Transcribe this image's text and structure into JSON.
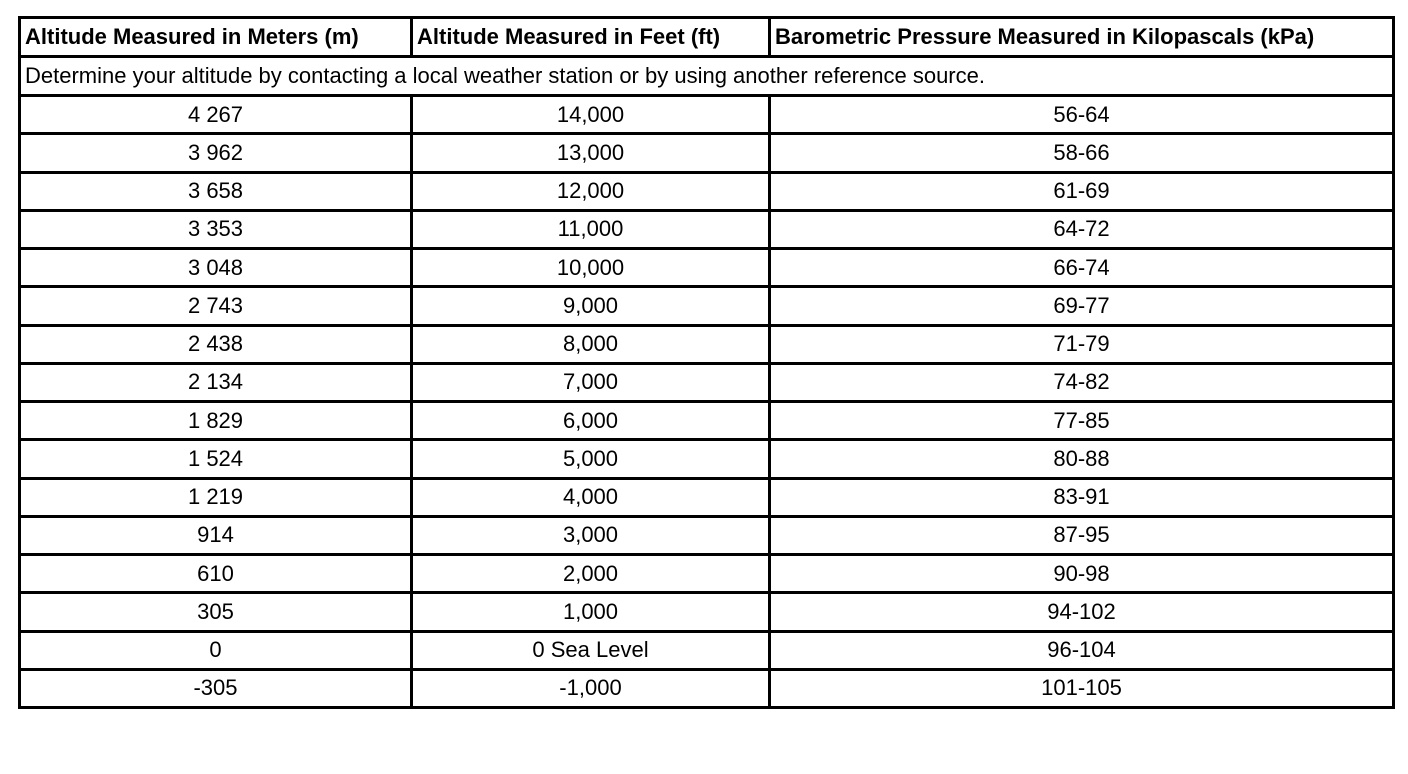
{
  "table": {
    "header": [
      "Altitude Measured in Meters (m)",
      "Altitude Measured in Feet (ft)",
      "Barometric Pressure Measured in Kilopascals (kPa)"
    ],
    "note": "Determine your altitude by contacting a local weather station or by using another reference source.",
    "rows": [
      [
        "4 267",
        "14,000",
        "56-64"
      ],
      [
        "3 962",
        "13,000",
        "58-66"
      ],
      [
        "3 658",
        "12,000",
        "61-69"
      ],
      [
        "3 353",
        "11,000",
        "64-72"
      ],
      [
        "3 048",
        "10,000",
        "66-74"
      ],
      [
        "2 743",
        "9,000",
        "69-77"
      ],
      [
        "2 438",
        "8,000",
        "71-79"
      ],
      [
        "2 134",
        "7,000",
        "74-82"
      ],
      [
        "1 829",
        "6,000",
        "77-85"
      ],
      [
        "1 524",
        "5,000",
        "80-88"
      ],
      [
        "1 219",
        "4,000",
        "83-91"
      ],
      [
        "914",
        "3,000",
        "87-95"
      ],
      [
        "610",
        "2,000",
        "90-98"
      ],
      [
        "305",
        "1,000",
        "94-102"
      ],
      [
        "0",
        "0 Sea Level",
        "96-104"
      ],
      [
        "-305",
        "-1,000",
        "101-105"
      ]
    ]
  }
}
